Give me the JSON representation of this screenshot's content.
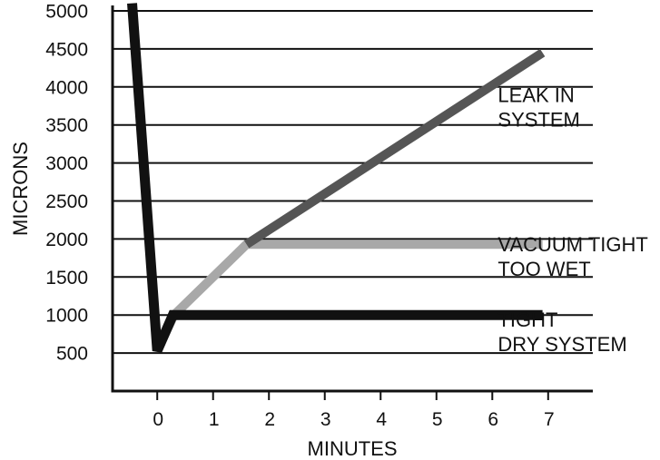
{
  "chart_data": {
    "type": "line",
    "xlabel": "MINUTES",
    "ylabel": "MICRONS",
    "xlim": [
      -0.8,
      7.8
    ],
    "ylim": [
      0,
      5000
    ],
    "x_ticks": [
      "0",
      "1",
      "2",
      "3",
      "4",
      "5",
      "6",
      "7"
    ],
    "y_ticks": [
      "5000",
      "4500",
      "4000",
      "3500",
      "3000",
      "2500",
      "2000",
      "1500",
      "1000",
      "500"
    ],
    "grid": "horizontal",
    "series": [
      {
        "color": "#111111",
        "points": [
          [
            -0.45,
            5100
          ],
          [
            0.0,
            530
          ],
          [
            0.28,
            1000
          ],
          [
            6.9,
            1000
          ]
        ]
      },
      {
        "color": "#a8a8a8",
        "points": [
          [
            0.0,
            530
          ],
          [
            0.3,
            1000
          ],
          [
            1.6,
            1930
          ],
          [
            6.9,
            1930
          ]
        ]
      },
      {
        "color": "#555555",
        "points": [
          [
            1.6,
            1930
          ],
          [
            6.9,
            4450
          ]
        ]
      }
    ],
    "annotations": [
      {
        "lines": [
          "LEAK IN",
          "SYSTEM"
        ],
        "x": 6.1,
        "y": 3800
      },
      {
        "lines": [
          "VACUUM TIGHT",
          "TOO WET"
        ],
        "x": 6.1,
        "y": 1840
      },
      {
        "lines": [
          "TIGHT",
          "DRY SYSTEM"
        ],
        "x": 6.1,
        "y": 850
      }
    ]
  }
}
